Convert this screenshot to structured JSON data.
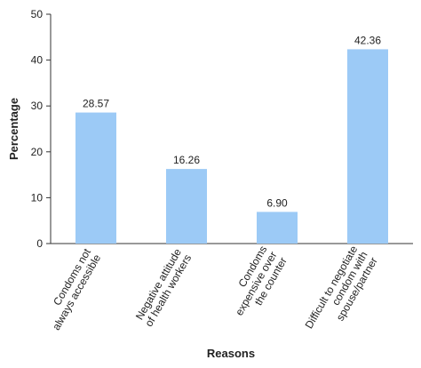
{
  "chart_data": {
    "type": "bar",
    "categories": [
      "Condoms not\nalways accessible",
      "Negative attitude\nof health workers",
      "Condoms\nexpensive over\nthe counter",
      "Difficult to negotiate\ncondom with\nspouse/partner"
    ],
    "values": [
      28.57,
      16.26,
      6.9,
      42.36
    ],
    "value_labels": [
      "28.57",
      "16.26",
      "6.90",
      "42.36"
    ],
    "color": "#9ccaf6",
    "ylim": [
      0,
      50
    ],
    "yticks": [
      0,
      10,
      20,
      30,
      40,
      50
    ],
    "y_label": "Percentage",
    "x_label": "Reasons",
    "grid": false
  }
}
